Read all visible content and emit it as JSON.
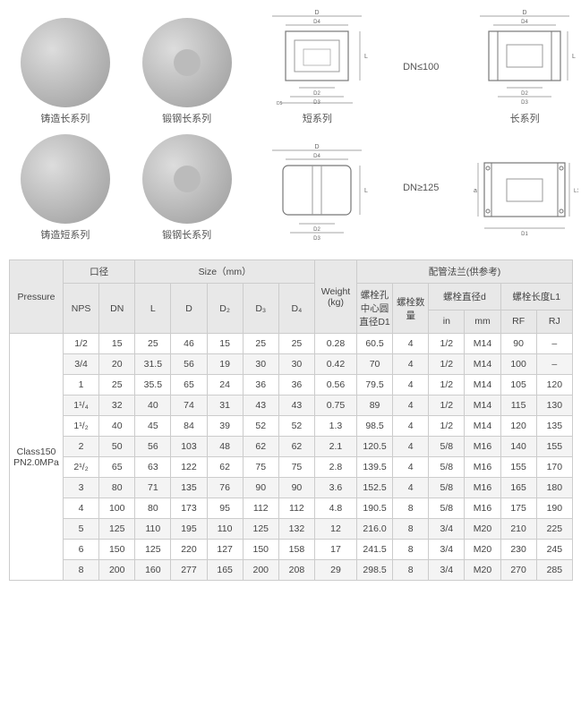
{
  "images": {
    "row1": [
      {
        "label": "铸造长系列",
        "type": "photo"
      },
      {
        "label": "锻钢长系列",
        "type": "photo-disc"
      },
      {
        "label": "短系列",
        "type": "diagram-short"
      },
      {
        "label": "长系列",
        "type": "diagram-long"
      }
    ],
    "dn_note1": "DN≤100",
    "row2": [
      {
        "label": "铸造短系列",
        "type": "photo"
      },
      {
        "label": "锻钢长系列",
        "type": "photo-disc"
      },
      {
        "label": "",
        "type": "diagram-short2"
      },
      {
        "label": "",
        "type": "diagram-long2"
      }
    ],
    "dn_note2": "DN≥125"
  },
  "table": {
    "headers": {
      "pressure": "Pressure",
      "caliber": "口径",
      "size": "Size（mm）",
      "weight": "Weight (kg)",
      "flange": "配管法兰(供参考)",
      "nps": "NPS",
      "dn": "DN",
      "L": "L",
      "D": "D",
      "D2": "D₂",
      "D3": "D₃",
      "D4": "D₄",
      "bolt_circle": "螺栓孔中心圆直径D1",
      "bolt_count": "螺栓数量",
      "bolt_dia": "螺栓直径d",
      "bolt_len": "螺栓长度L1",
      "in": "in",
      "mm": "mm",
      "rf": "RF",
      "rj": "RJ"
    },
    "pressure_label": "Class150\nPN2.0MPa",
    "rows": [
      {
        "nps": "1/2",
        "dn": "15",
        "L": "25",
        "D": "46",
        "D2": "15",
        "D3": "25",
        "D4": "25",
        "w": "0.28",
        "d1": "60.5",
        "n": "4",
        "in": "1/2",
        "mm": "M14",
        "rf": "90",
        "rj": "–"
      },
      {
        "nps": "3/4",
        "dn": "20",
        "L": "31.5",
        "D": "56",
        "D2": "19",
        "D3": "30",
        "D4": "30",
        "w": "0.42",
        "d1": "70",
        "n": "4",
        "in": "1/2",
        "mm": "M14",
        "rf": "100",
        "rj": "–"
      },
      {
        "nps": "1",
        "dn": "25",
        "L": "35.5",
        "D": "65",
        "D2": "24",
        "D3": "36",
        "D4": "36",
        "w": "0.56",
        "d1": "79.5",
        "n": "4",
        "in": "1/2",
        "mm": "M14",
        "rf": "105",
        "rj": "120"
      },
      {
        "nps": "1¹/₄",
        "dn": "32",
        "L": "40",
        "D": "74",
        "D2": "31",
        "D3": "43",
        "D4": "43",
        "w": "0.75",
        "d1": "89",
        "n": "4",
        "in": "1/2",
        "mm": "M14",
        "rf": "115",
        "rj": "130"
      },
      {
        "nps": "1¹/₂",
        "dn": "40",
        "L": "45",
        "D": "84",
        "D2": "39",
        "D3": "52",
        "D4": "52",
        "w": "1.3",
        "d1": "98.5",
        "n": "4",
        "in": "1/2",
        "mm": "M14",
        "rf": "120",
        "rj": "135"
      },
      {
        "nps": "2",
        "dn": "50",
        "L": "56",
        "D": "103",
        "D2": "48",
        "D3": "62",
        "D4": "62",
        "w": "2.1",
        "d1": "120.5",
        "n": "4",
        "in": "5/8",
        "mm": "M16",
        "rf": "140",
        "rj": "155"
      },
      {
        "nps": "2¹/₂",
        "dn": "65",
        "L": "63",
        "D": "122",
        "D2": "62",
        "D3": "75",
        "D4": "75",
        "w": "2.8",
        "d1": "139.5",
        "n": "4",
        "in": "5/8",
        "mm": "M16",
        "rf": "155",
        "rj": "170"
      },
      {
        "nps": "3",
        "dn": "80",
        "L": "71",
        "D": "135",
        "D2": "76",
        "D3": "90",
        "D4": "90",
        "w": "3.6",
        "d1": "152.5",
        "n": "4",
        "in": "5/8",
        "mm": "M16",
        "rf": "165",
        "rj": "180"
      },
      {
        "nps": "4",
        "dn": "100",
        "L": "80",
        "D": "173",
        "D2": "95",
        "D3": "112",
        "D4": "112",
        "w": "4.8",
        "d1": "190.5",
        "n": "8",
        "in": "5/8",
        "mm": "M16",
        "rf": "175",
        "rj": "190"
      },
      {
        "nps": "5",
        "dn": "125",
        "L": "110",
        "D": "195",
        "D2": "110",
        "D3": "125",
        "D4": "132",
        "w": "12",
        "d1": "216.0",
        "n": "8",
        "in": "3/4",
        "mm": "M20",
        "rf": "210",
        "rj": "225"
      },
      {
        "nps": "6",
        "dn": "150",
        "L": "125",
        "D": "220",
        "D2": "127",
        "D3": "150",
        "D4": "158",
        "w": "17",
        "d1": "241.5",
        "n": "8",
        "in": "3/4",
        "mm": "M20",
        "rf": "230",
        "rj": "245"
      },
      {
        "nps": "8",
        "dn": "200",
        "L": "160",
        "D": "277",
        "D2": "165",
        "D3": "200",
        "D4": "208",
        "w": "29",
        "d1": "298.5",
        "n": "8",
        "in": "3/4",
        "mm": "M20",
        "rf": "270",
        "rj": "285"
      }
    ]
  }
}
